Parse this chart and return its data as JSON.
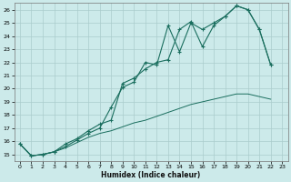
{
  "xlabel": "Humidex (Indice chaleur)",
  "bg_color": "#cceaea",
  "line_color": "#1a6e5e",
  "grid_color": "#aacccc",
  "xlim": [
    -0.5,
    23.5
  ],
  "ylim": [
    14.5,
    26.5
  ],
  "xticks": [
    0,
    1,
    2,
    3,
    4,
    5,
    6,
    7,
    8,
    9,
    10,
    11,
    12,
    13,
    14,
    15,
    16,
    17,
    18,
    19,
    20,
    21,
    22,
    23
  ],
  "yticks": [
    15,
    16,
    17,
    18,
    19,
    20,
    21,
    22,
    23,
    24,
    25,
    26
  ],
  "line1_x": [
    0,
    1,
    2,
    3,
    4,
    5,
    6,
    7,
    8,
    9,
    10,
    11,
    12,
    13,
    14,
    15,
    16,
    17,
    18,
    19,
    20,
    21,
    22
  ],
  "line1_y": [
    15.8,
    14.9,
    15.0,
    15.2,
    15.6,
    16.1,
    16.6,
    17.0,
    18.6,
    20.1,
    20.5,
    22.0,
    21.8,
    24.8,
    22.8,
    25.0,
    24.5,
    25.0,
    25.5,
    26.3,
    26.0,
    24.5,
    21.8
  ],
  "line2_x": [
    0,
    1,
    2,
    3,
    4,
    5,
    6,
    7,
    8,
    9,
    10,
    11,
    12,
    13,
    14,
    15,
    16,
    17,
    18,
    19,
    20,
    21,
    22
  ],
  "line2_y": [
    15.8,
    14.9,
    15.0,
    15.2,
    15.8,
    16.2,
    16.8,
    17.3,
    17.6,
    20.4,
    20.8,
    21.5,
    22.0,
    22.2,
    24.5,
    25.1,
    23.2,
    24.8,
    25.5,
    26.3,
    26.0,
    24.5,
    21.8
  ],
  "line3_x": [
    0,
    1,
    2,
    3,
    4,
    5,
    6,
    7,
    8,
    9,
    10,
    11,
    12,
    13,
    14,
    15,
    16,
    17,
    18,
    19,
    20,
    21,
    22
  ],
  "line3_y": [
    15.8,
    14.9,
    15.0,
    15.2,
    15.5,
    15.9,
    16.3,
    16.6,
    16.8,
    17.1,
    17.4,
    17.6,
    17.9,
    18.2,
    18.5,
    18.8,
    19.0,
    19.2,
    19.4,
    19.6,
    19.6,
    19.4,
    19.2
  ]
}
